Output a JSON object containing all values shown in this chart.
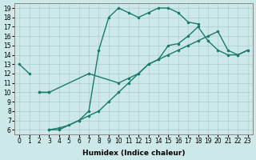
{
  "xlabel": "Humidex (Indice chaleur)",
  "xlim": [
    -0.5,
    23.5
  ],
  "ylim": [
    5.5,
    19.5
  ],
  "xticks": [
    0,
    1,
    2,
    3,
    4,
    5,
    6,
    7,
    8,
    9,
    10,
    11,
    12,
    13,
    14,
    15,
    16,
    17,
    18,
    19,
    20,
    21,
    22,
    23
  ],
  "yticks": [
    6,
    7,
    8,
    9,
    10,
    11,
    12,
    13,
    14,
    15,
    16,
    17,
    18,
    19
  ],
  "bg_color": "#cde8e8",
  "grid_color": "#aacfcf",
  "line_color": "#1a7a6e",
  "line1_x": [
    0,
    1
  ],
  "line1_y": [
    13,
    12
  ],
  "line2_x": [
    3,
    4,
    6,
    7,
    8,
    9,
    10,
    11,
    12,
    13,
    14,
    15,
    16,
    17,
    18
  ],
  "line2_y": [
    6,
    6,
    7,
    8,
    14.5,
    18,
    19,
    18.5,
    18,
    18.5,
    19,
    19,
    18.5,
    17.5,
    17.3
  ],
  "line3_x": [
    2,
    3
  ],
  "line3_y": [
    10,
    10
  ],
  "line4_x": [
    3,
    4,
    5,
    6,
    7,
    8,
    9,
    10,
    11,
    12,
    13,
    14,
    15,
    16,
    17,
    18,
    19,
    20,
    21,
    22,
    23
  ],
  "line4_y": [
    6,
    6.2,
    6.5,
    7,
    7.5,
    8,
    9,
    10,
    11,
    12,
    13,
    13.5,
    14,
    14.5,
    15,
    15.5,
    16,
    16.5,
    14.5,
    14.0,
    14.5
  ],
  "line5_x": [
    2,
    3,
    7,
    10,
    11,
    12,
    13,
    14,
    15,
    16,
    17,
    18,
    19,
    20,
    21,
    22,
    23
  ],
  "line5_y": [
    10,
    10,
    12,
    11,
    11.5,
    12,
    13,
    13.5,
    15,
    15.2,
    16,
    17,
    15.5,
    14.5,
    14.0,
    14.0,
    14.5
  ],
  "fontsize_tick": 5.5,
  "fontsize_label": 6.5
}
